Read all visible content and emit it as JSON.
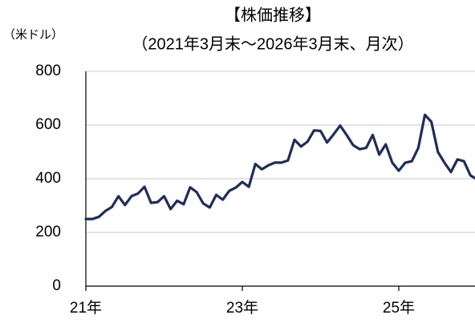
{
  "chart_data": {
    "type": "line",
    "title": "【株価推移】",
    "subtitle": "（2021年3月末～2026年3月末、月次）",
    "y_label": "（米ドル）",
    "categories": [
      "21年",
      null,
      null,
      null,
      null,
      null,
      null,
      null,
      null,
      null,
      null,
      null,
      null,
      null,
      null,
      null,
      null,
      null,
      null,
      null,
      null,
      null,
      null,
      null,
      "23年",
      null,
      null,
      null,
      null,
      null,
      null,
      null,
      null,
      null,
      null,
      null,
      null,
      null,
      null,
      null,
      null,
      null,
      null,
      null,
      null,
      null,
      null,
      null,
      "25年",
      null,
      null,
      null,
      null,
      null,
      null,
      null,
      null,
      null,
      null,
      null,
      null
    ],
    "series": [
      {
        "name": "株価",
        "color": "#1f2d5a",
        "values": [
          250,
          250,
          258,
          280,
          295,
          335,
          302,
          335,
          345,
          370,
          310,
          313,
          335,
          287,
          318,
          305,
          368,
          350,
          308,
          293,
          340,
          322,
          355,
          367,
          388,
          370,
          455,
          435,
          450,
          460,
          460,
          468,
          545,
          520,
          538,
          580,
          578,
          535,
          565,
          598,
          563,
          525,
          510,
          515,
          563,
          490,
          528,
          460,
          430,
          460,
          465,
          515,
          638,
          612,
          500,
          460,
          425,
          472,
          465,
          412,
          398
        ]
      }
    ],
    "ylim": [
      0,
      800
    ],
    "yticks": [
      0,
      200,
      400,
      600,
      800
    ],
    "grid": true
  }
}
